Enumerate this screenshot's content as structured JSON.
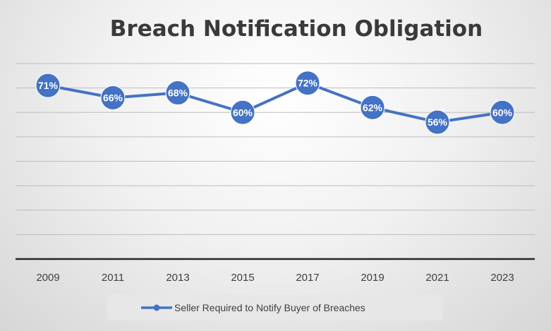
{
  "chart_data": {
    "type": "line",
    "title": "Breach Notification Obligation",
    "xlabel": "",
    "ylabel": "",
    "categories": [
      "2009",
      "2011",
      "2013",
      "2015",
      "2017",
      "2019",
      "2021",
      "2023"
    ],
    "series": [
      {
        "name": "Seller Required to Notify Buyer of Breaches",
        "values": [
          71,
          66,
          68,
          60,
          72,
          62,
          56,
          60
        ],
        "labels": [
          "71%",
          "66%",
          "68%",
          "60%",
          "72%",
          "62%",
          "56%",
          "60%"
        ],
        "color": "#4472C4"
      }
    ],
    "ylim": [
      0,
      80
    ],
    "grid": true,
    "legend_position": "bottom",
    "show_y_axis_labels": false
  }
}
